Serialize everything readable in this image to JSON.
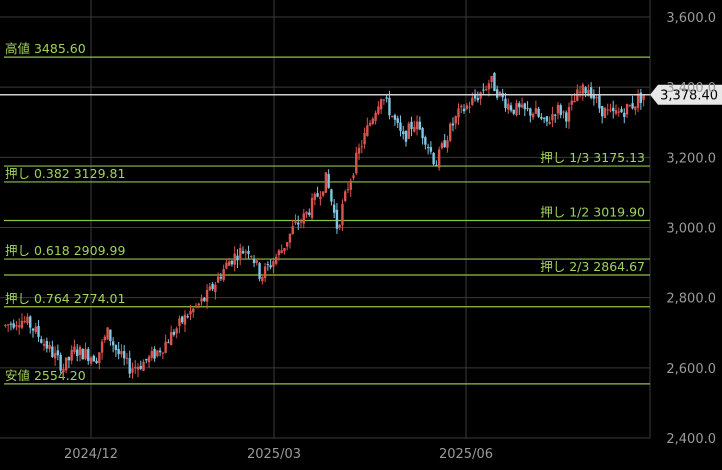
{
  "colors": {
    "background": "#000000",
    "grid": "#3a3a3a",
    "fib_line": "#8fc14a",
    "fib_text": "#9fd35a",
    "up_candle": "#d9534f",
    "down_candle": "#7ec8e3",
    "current_line": "#d0d0d0",
    "current_badge_bg": "#e8e8e8",
    "current_badge_text": "#000000",
    "axis_text": "#9a9a9a"
  },
  "chart_data": {
    "type": "candlestick",
    "title": "",
    "ylim": [
      2400,
      3600
    ],
    "y_ticks": [
      "3,600.0",
      "3,400.0",
      "3,200.0",
      "3,000.0",
      "2,800.0",
      "2,600.0",
      "2,400.0"
    ],
    "y_tick_values": [
      3600,
      3400,
      3200,
      3000,
      2800,
      2600,
      2400
    ],
    "x_ticks": [
      "2024/12",
      "2025/03",
      "2025/06"
    ],
    "grid": true,
    "current_price": 3378.4,
    "current_price_label": "3,378.40",
    "levels": [
      {
        "name": "高値 3485.60",
        "value": 3485.6,
        "side": "left"
      },
      {
        "name": "押し 1/3 3175.13",
        "value": 3175.13,
        "side": "right"
      },
      {
        "name": "押し 0.382 3129.81",
        "value": 3129.81,
        "side": "left"
      },
      {
        "name": "押し 1/2 3019.90",
        "value": 3019.9,
        "side": "right"
      },
      {
        "name": "押し 0.618 2909.99",
        "value": 2909.99,
        "side": "left"
      },
      {
        "name": "押し 2/3 2864.67",
        "value": 2864.67,
        "side": "right"
      },
      {
        "name": "押し 0.764 2774.01",
        "value": 2774.01,
        "side": "left"
      },
      {
        "name": "安値 2554.20",
        "value": 2554.2,
        "side": "left"
      }
    ],
    "close_path": [
      [
        0,
        2720
      ],
      [
        8,
        2740
      ],
      [
        14,
        2720
      ],
      [
        20,
        2680
      ],
      [
        26,
        2640
      ],
      [
        32,
        2600
      ],
      [
        38,
        2650
      ],
      [
        44,
        2640
      ],
      [
        50,
        2630
      ],
      [
        56,
        2700
      ],
      [
        62,
        2640
      ],
      [
        68,
        2600
      ],
      [
        74,
        2610
      ],
      [
        80,
        2630
      ],
      [
        86,
        2660
      ],
      [
        92,
        2700
      ],
      [
        98,
        2740
      ],
      [
        104,
        2770
      ],
      [
        110,
        2800
      ],
      [
        116,
        2850
      ],
      [
        122,
        2900
      ],
      [
        128,
        2930
      ],
      [
        134,
        2940
      ],
      [
        140,
        2860
      ],
      [
        146,
        2900
      ],
      [
        152,
        2940
      ],
      [
        158,
        3000
      ],
      [
        164,
        3030
      ],
      [
        170,
        3080
      ],
      [
        176,
        3140
      ],
      [
        182,
        3000
      ],
      [
        188,
        3120
      ],
      [
        194,
        3220
      ],
      [
        200,
        3300
      ],
      [
        206,
        3380
      ],
      [
        212,
        3320
      ],
      [
        218,
        3250
      ],
      [
        224,
        3300
      ],
      [
        230,
        3260
      ],
      [
        236,
        3180
      ],
      [
        242,
        3260
      ],
      [
        248,
        3320
      ],
      [
        254,
        3350
      ],
      [
        260,
        3380
      ],
      [
        266,
        3420
      ],
      [
        272,
        3370
      ],
      [
        278,
        3340
      ],
      [
        284,
        3330
      ],
      [
        290,
        3330
      ],
      [
        296,
        3290
      ],
      [
        302,
        3340
      ],
      [
        308,
        3320
      ],
      [
        314,
        3380
      ],
      [
        320,
        3400
      ],
      [
        326,
        3340
      ],
      [
        332,
        3320
      ],
      [
        338,
        3330
      ],
      [
        344,
        3350
      ],
      [
        350,
        3378
      ]
    ],
    "n_candles": 232
  }
}
